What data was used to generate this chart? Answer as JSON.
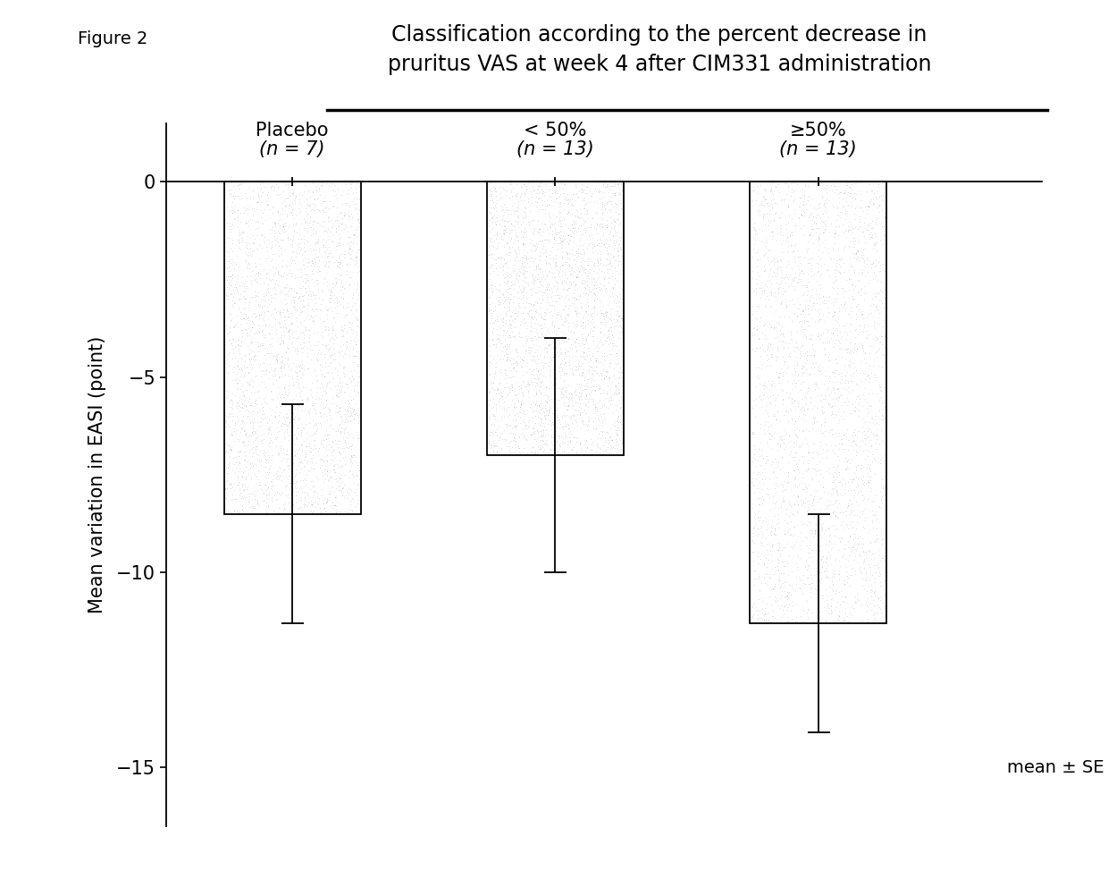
{
  "title_line1": "Classification according to the percent decrease in",
  "title_line2": "pruritus VAS at week 4 after CIM331 administration",
  "figure_label": "Figure 2",
  "cat_line1": [
    "Placebo",
    "< 50%",
    "≥50%"
  ],
  "cat_line2": [
    "(n = 7)",
    "(n = 13)",
    "(n = 13)"
  ],
  "means": [
    -8.5,
    -7.0,
    -11.3
  ],
  "ses": [
    2.8,
    3.0,
    2.8
  ],
  "ylabel": "Mean variation in EASI (point)",
  "ylim": [
    -16.5,
    1.5
  ],
  "yticks": [
    0,
    -5,
    -10,
    -15
  ],
  "bar_edgecolor": "#000000",
  "bar_width": 0.52,
  "bar_positions": [
    1,
    2,
    3
  ],
  "annotation": "mean ± SE",
  "background_color": "#ffffff",
  "title_fontsize": 17,
  "label_fontsize": 15,
  "tick_fontsize": 15,
  "figure_label_fontsize": 14,
  "annotation_fontsize": 14,
  "cat_fontsize": 15
}
